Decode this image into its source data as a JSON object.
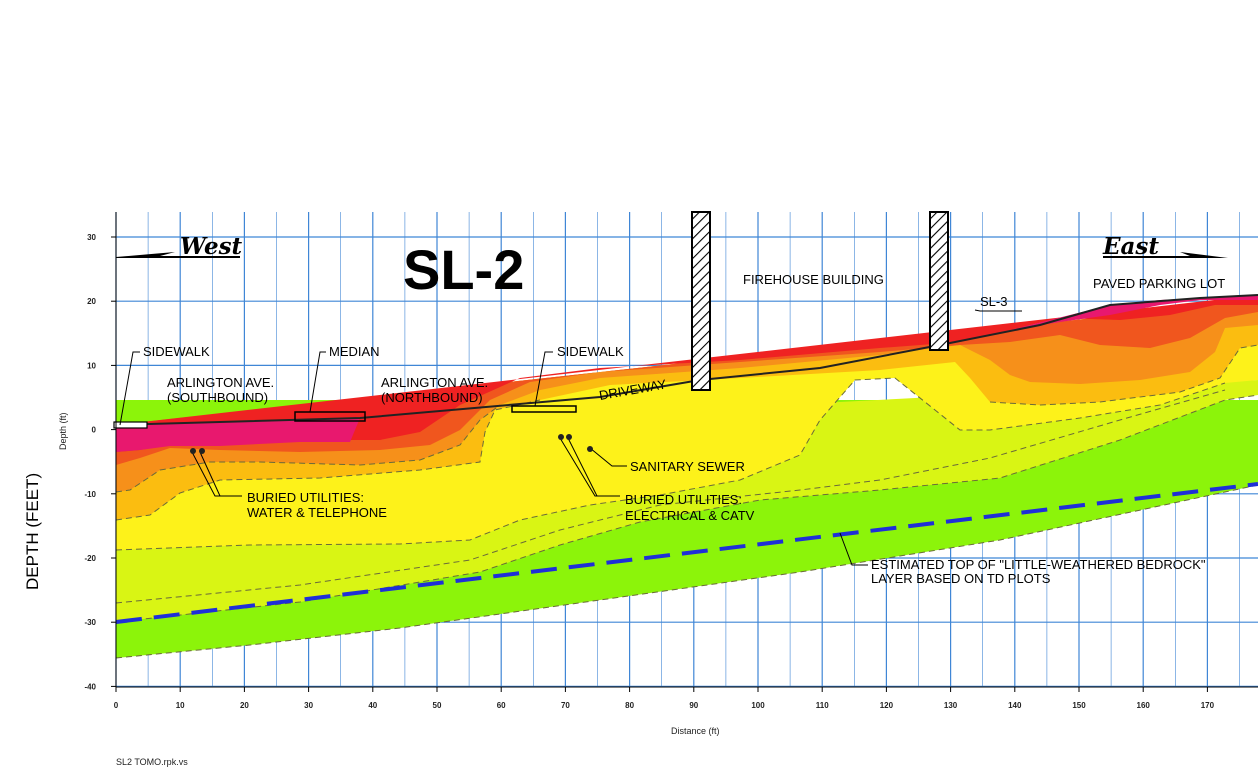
{
  "title": "SL-2",
  "west_label": "West",
  "east_label": "East",
  "y_side_label": "DEPTH (FEET)",
  "y_axis_small_label": "Depth (ft)",
  "x_axis_label": "Distance (ft)",
  "file_label": "SL2 TOMO.rpk.vs",
  "x_ticks": [
    "0",
    "10",
    "20",
    "30",
    "40",
    "50",
    "60",
    "70",
    "80",
    "90",
    "100",
    "110",
    "120",
    "130",
    "140",
    "150",
    "160",
    "170"
  ],
  "y_ticks": [
    "30",
    "20",
    "10",
    "0",
    "-10",
    "-20",
    "-30",
    "-40"
  ],
  "annotations": {
    "sidewalk_west": "SIDEWALK",
    "median": "MEDIAN",
    "sidewalk_east": "SIDEWALK",
    "arlington_sb_1": "ARLINGTON AVE.",
    "arlington_sb_2": "(SOUTHBOUND)",
    "arlington_nb_1": "ARLINGTON AVE.",
    "arlington_nb_2": "(NORTHBOUND)",
    "driveway": "DRIVEWAY",
    "firehouse": "FIREHOUSE BUILDING",
    "sl3": "SL-3",
    "parking": "PAVED PARKING LOT",
    "sanitary": "SANITARY SEWER",
    "utilities_wt_1": "BURIED UTILITIES:",
    "utilities_wt_2": "WATER & TELEPHONE",
    "utilities_ec_1": "BURIED UTILITIES:",
    "utilities_ec_2": "ELECTRICAL & CATV",
    "bedrock_1": "ESTIMATED TOP OF \"LITTLE-WEATHERED BEDROCK\"",
    "bedrock_2": "LAYER BASED ON TD PLOTS"
  },
  "colors": {
    "magenta": "#e8186e",
    "red": "#ef2222",
    "red_orange": "#f0561e",
    "orange": "#f6901a",
    "amber": "#fbbd10",
    "yellow": "#fdf21a",
    "yellow_green": "#d9f514",
    "green": "#8cf40a",
    "grid": "#3f86d6",
    "bedrock_line": "#1f2fd8"
  }
}
